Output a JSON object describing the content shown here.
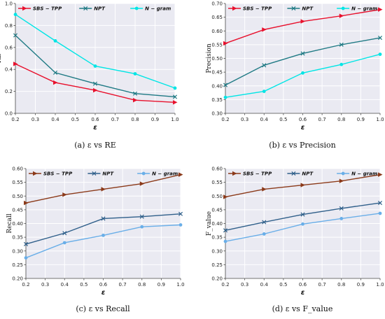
{
  "colors": {
    "panel_background": "#eaeaf2",
    "grid": "#ffffff",
    "axis": "#444444"
  },
  "chart_data": [
    {
      "type": "line",
      "caption": "(a)  ε  vs RE",
      "xlabel": "ε",
      "ylabel": "RE",
      "x": [
        0.2,
        0.4,
        0.6,
        0.8,
        1.0
      ],
      "xlim": [
        0.2,
        1.0
      ],
      "ylim": [
        0.0,
        1.0
      ],
      "xticks": [
        "0.2",
        "0.3",
        "0.4",
        "0.5",
        "0.6",
        "0.7",
        "0.8",
        "0.9",
        "1.0"
      ],
      "yticks": [
        "0.0",
        "0.2",
        "0.4",
        "0.6",
        "0.8",
        "1.0"
      ],
      "legend_position": "top",
      "grid": true,
      "series": [
        {
          "name": "SBS − TPP",
          "color": "#e8112d",
          "marker": "triangle-right",
          "values": [
            0.45,
            0.28,
            0.21,
            0.12,
            0.1
          ]
        },
        {
          "name": "NPT",
          "color": "#1f7a84",
          "marker": "x",
          "values": [
            0.71,
            0.37,
            0.27,
            0.18,
            0.15
          ]
        },
        {
          "name": "N − gram",
          "color": "#00e5e5",
          "marker": "circle",
          "values": [
            0.9,
            0.66,
            0.43,
            0.36,
            0.23
          ]
        }
      ]
    },
    {
      "type": "line",
      "caption": "(b)  ε  vs Precision",
      "xlabel": "ε",
      "ylabel": "Precision",
      "x": [
        0.2,
        0.4,
        0.6,
        0.8,
        1.0
      ],
      "xlim": [
        0.2,
        1.0
      ],
      "ylim": [
        0.3,
        0.7
      ],
      "xticks": [
        "0.2",
        "0.3",
        "0.4",
        "0.5",
        "0.6",
        "0.7",
        "0.8",
        "0.9",
        "1.0"
      ],
      "yticks": [
        "0.30",
        "0.35",
        "0.40",
        "0.45",
        "0.50",
        "0.55",
        "0.60",
        "0.65",
        "0.70"
      ],
      "legend_position": "top",
      "grid": true,
      "series": [
        {
          "name": "SBS − TPP",
          "color": "#e8112d",
          "marker": "triangle-right",
          "values": [
            0.555,
            0.605,
            0.635,
            0.655,
            0.678
          ]
        },
        {
          "name": "NPT",
          "color": "#1f7a84",
          "marker": "x",
          "values": [
            0.403,
            0.475,
            0.518,
            0.55,
            0.575
          ]
        },
        {
          "name": "N − gram",
          "color": "#00e5e5",
          "marker": "circle",
          "values": [
            0.358,
            0.38,
            0.447,
            0.478,
            0.515
          ]
        }
      ]
    },
    {
      "type": "line",
      "caption": "(c)  ε  vs Recall",
      "xlabel": "ε",
      "ylabel": "Recall",
      "x": [
        0.2,
        0.4,
        0.6,
        0.8,
        1.0
      ],
      "xlim": [
        0.2,
        1.0
      ],
      "ylim": [
        0.2,
        0.6
      ],
      "xticks": [
        "0.2",
        "0.3",
        "0.4",
        "0.5",
        "0.6",
        "0.7",
        "0.8",
        "0.9",
        "1.0"
      ],
      "yticks": [
        "0.20",
        "0.25",
        "0.30",
        "0.35",
        "0.40",
        "0.45",
        "0.50",
        "0.55",
        "0.60"
      ],
      "legend_position": "top",
      "grid": true,
      "series": [
        {
          "name": "SBS − TPP",
          "color": "#8b3a1a",
          "marker": "triangle-right",
          "values": [
            0.475,
            0.505,
            0.525,
            0.545,
            0.578
          ]
        },
        {
          "name": "NPT",
          "color": "#2f5f8a",
          "marker": "x",
          "values": [
            0.325,
            0.365,
            0.418,
            0.425,
            0.435
          ]
        },
        {
          "name": "N − gram",
          "color": "#69aee8",
          "marker": "circle",
          "values": [
            0.275,
            0.33,
            0.357,
            0.388,
            0.395
          ]
        }
      ]
    },
    {
      "type": "line",
      "caption": "(d)  ε  vs F_value",
      "xlabel": "ε",
      "ylabel": "F_value",
      "x": [
        0.2,
        0.4,
        0.6,
        0.8,
        1.0
      ],
      "xlim": [
        0.2,
        1.0
      ],
      "ylim": [
        0.2,
        0.6
      ],
      "xticks": [
        "0.2",
        "0.3",
        "0.4",
        "0.5",
        "0.6",
        "0.7",
        "0.8",
        "0.9",
        "1.0"
      ],
      "yticks": [
        "0.20",
        "0.25",
        "0.30",
        "0.35",
        "0.40",
        "0.45",
        "0.50",
        "0.55",
        "0.60"
      ],
      "legend_position": "top",
      "grid": true,
      "series": [
        {
          "name": "SBS − TPP",
          "color": "#8b3a1a",
          "marker": "triangle-right",
          "values": [
            0.497,
            0.525,
            0.54,
            0.555,
            0.578
          ]
        },
        {
          "name": "NPT",
          "color": "#2f5f8a",
          "marker": "x",
          "values": [
            0.375,
            0.405,
            0.433,
            0.455,
            0.475
          ]
        },
        {
          "name": "N − gram",
          "color": "#69aee8",
          "marker": "circle",
          "values": [
            0.335,
            0.362,
            0.398,
            0.418,
            0.437
          ]
        }
      ]
    }
  ]
}
